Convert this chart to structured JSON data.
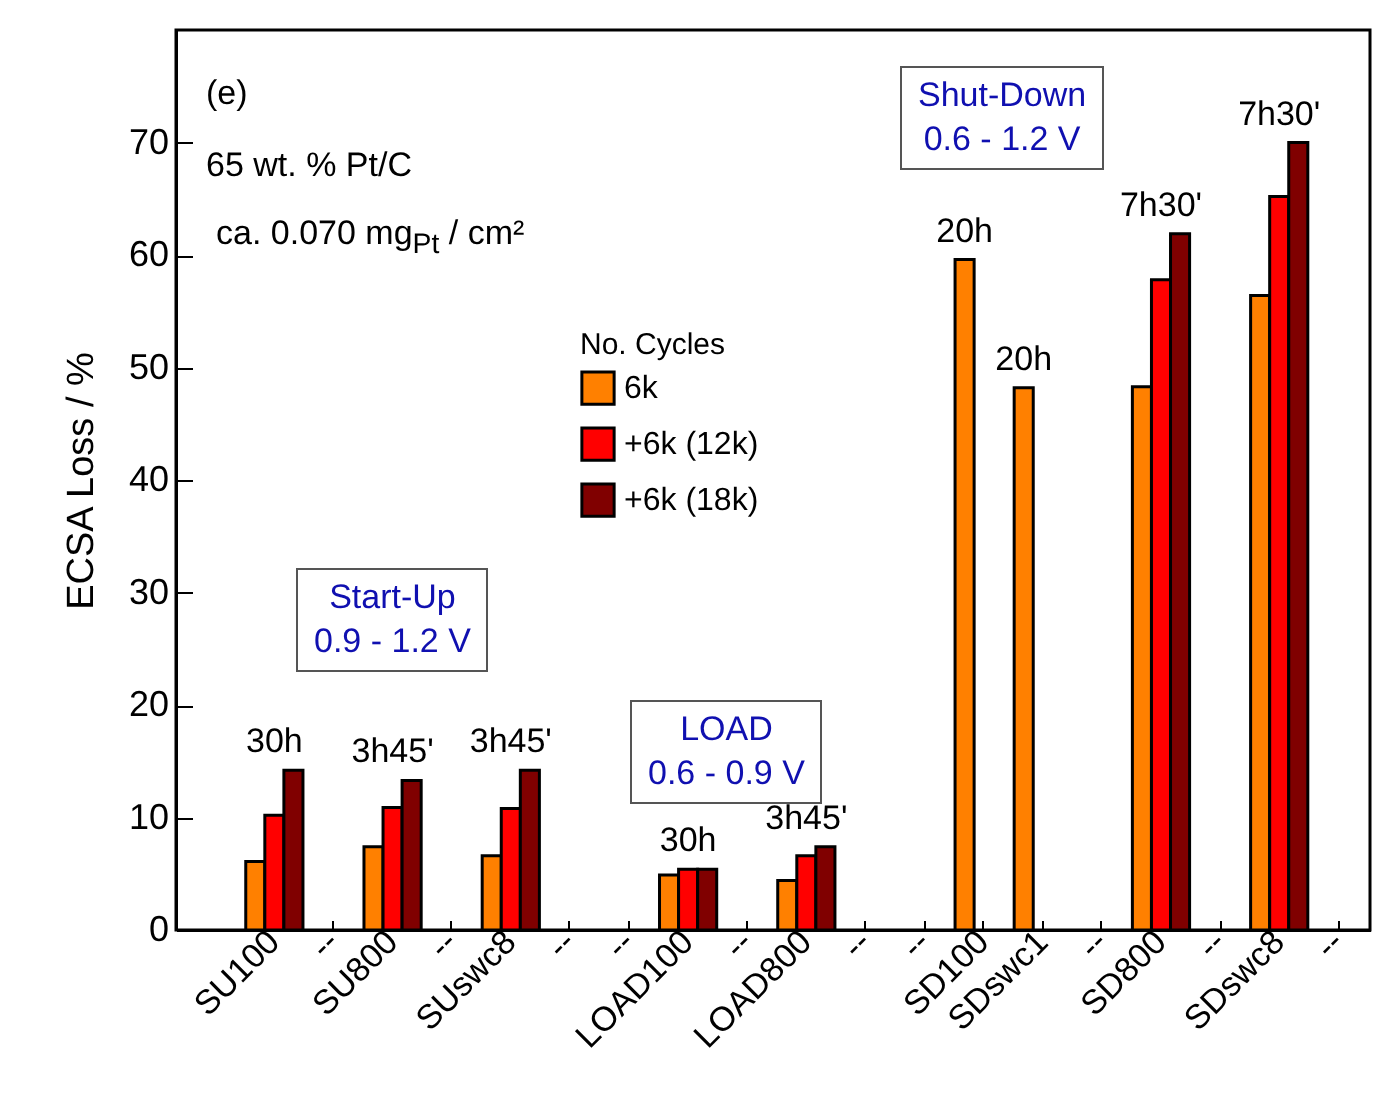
{
  "chart_data": {
    "type": "bar",
    "ylabel": "ECSA Loss / %",
    "legend_title": "No. Cycles",
    "legend": "top left",
    "grid": false,
    "categories": [
      "SU100",
      "--",
      "SU800",
      "--",
      "SUswc8",
      "--",
      "--",
      "LOAD100",
      "--",
      "LOAD800",
      "--",
      "--",
      "SD100",
      "SDswc1",
      "--",
      "SD800",
      "--",
      "SDswc8",
      "--"
    ],
    "ylim": [
      0,
      80
    ],
    "yticks": [
      0,
      10,
      20,
      30,
      40,
      50,
      60,
      70
    ],
    "series": [
      {
        "name": "6k",
        "color": "#ff8000",
        "values": [
          6.1,
          null,
          7.4,
          null,
          6.6,
          null,
          null,
          4.9,
          null,
          4.4,
          null,
          null,
          59.6,
          48.2,
          null,
          48.3,
          null,
          56.4,
          null
        ]
      },
      {
        "name": "+6k (12k)",
        "color": "#ff0000",
        "values": [
          10.2,
          null,
          10.9,
          null,
          10.8,
          null,
          null,
          5.4,
          null,
          6.6,
          null,
          null,
          null,
          null,
          null,
          57.8,
          null,
          65.2,
          null
        ]
      },
      {
        "name": "+6k (18k)",
        "color": "#800000",
        "values": [
          14.2,
          null,
          13.3,
          null,
          14.2,
          null,
          null,
          5.4,
          null,
          7.4,
          null,
          null,
          null,
          null,
          null,
          61.9,
          null,
          70.0,
          null
        ]
      }
    ],
    "annotations": [
      "(e)",
      "65 wt. % Pt/C",
      "ca. 0.070 mg$_{Pt}$ / cm²",
      "Start-Up\n0.9 - 1.2 V",
      "LOAD\n0.6 - 0.9 V",
      "Shut-Down\n0.6 - 1.2 V",
      {
        "text": "30h",
        "x": "SU100",
        "y": 14.2
      },
      {
        "text": "3h45'",
        "x": "SU800",
        "y": 13.3
      },
      {
        "text": "3h45'",
        "x": "SUswc8",
        "y": 14.2
      },
      {
        "text": "30h",
        "x": "LOAD100",
        "y": 5.4
      },
      {
        "text": "3h45'",
        "x": "LOAD800",
        "y": 7.4
      },
      {
        "text": "20h",
        "x": "SD100",
        "y": 59.6
      },
      {
        "text": "20h",
        "x": "SDswc1",
        "y": 48.2
      },
      {
        "text": "7h30'",
        "x": "SD800",
        "y": 61.9
      },
      {
        "text": "7h30'",
        "x": "SDswc8",
        "y": 70.0
      }
    ]
  }
}
